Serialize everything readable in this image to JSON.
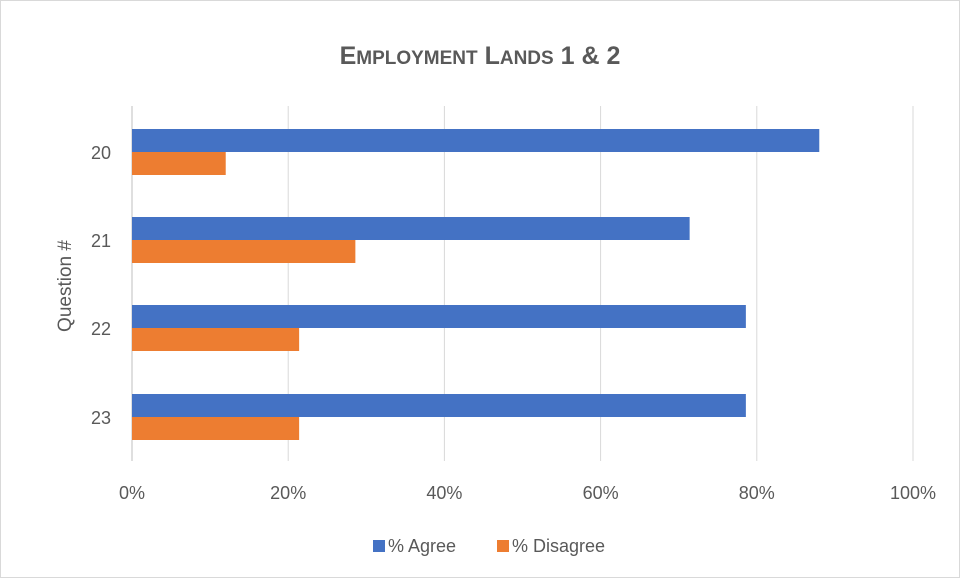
{
  "chart_data": {
    "type": "bar",
    "orientation": "horizontal",
    "title": "Employment Lands 1 & 2",
    "xlabel": "",
    "ylabel": "Question #",
    "categories": [
      "20",
      "21",
      "22",
      "23"
    ],
    "series": [
      {
        "name": "% Agree",
        "color": "#4472C4",
        "values": [
          0.88,
          0.714,
          0.786,
          0.786
        ]
      },
      {
        "name": "% Disagree",
        "color": "#ED7D31",
        "values": [
          0.12,
          0.286,
          0.214,
          0.214
        ]
      }
    ],
    "xlim": [
      0,
      1
    ],
    "x_ticks": [
      "0%",
      "20%",
      "40%",
      "60%",
      "80%",
      "100%"
    ],
    "grid": true,
    "legend_position": "bottom"
  }
}
